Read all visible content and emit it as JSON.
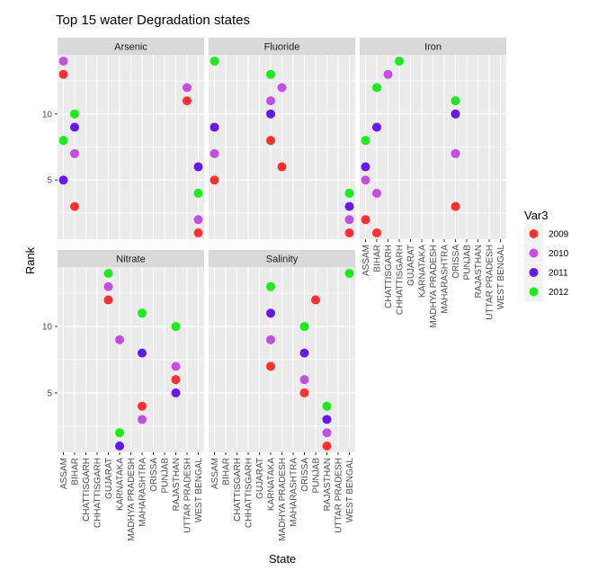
{
  "chart_data": {
    "type": "scatter",
    "title": "Top 15 water Degradation states",
    "xlabel": "State",
    "ylabel": "Rank",
    "ylim": [
      0,
      15
    ],
    "yticks": [
      5,
      10
    ],
    "grid": true,
    "legend": {
      "title": "Var3",
      "placement": "right"
    },
    "states": [
      "ASSAM",
      "BIHAR",
      "CHATTISGARH",
      "CHHATTISGARH",
      "GUJARAT",
      "KARNATAKA",
      "MADHYA PRADESH",
      "MAHARASHTRA",
      "ORISSA",
      "PUNJAB",
      "RAJASTHAN",
      "UTTAR PRADESH",
      "WEST BENGAL"
    ],
    "series": [
      {
        "name": "2009",
        "color": "#ff1a1a"
      },
      {
        "name": "2010",
        "color": "#c03ce6"
      },
      {
        "name": "2011",
        "color": "#5500ee"
      },
      {
        "name": "2012",
        "color": "#00ee00"
      }
    ],
    "panels": [
      {
        "name": "Arsenic",
        "points": [
          {
            "state": "ASSAM",
            "series": "2009",
            "rank": 13
          },
          {
            "state": "ASSAM",
            "series": "2010",
            "rank": 14
          },
          {
            "state": "ASSAM",
            "series": "2011",
            "rank": 5
          },
          {
            "state": "ASSAM",
            "series": "2012",
            "rank": 8
          },
          {
            "state": "BIHAR",
            "series": "2009",
            "rank": 3
          },
          {
            "state": "BIHAR",
            "series": "2010",
            "rank": 7
          },
          {
            "state": "BIHAR",
            "series": "2011",
            "rank": 9
          },
          {
            "state": "BIHAR",
            "series": "2012",
            "rank": 10
          },
          {
            "state": "UTTAR PRADESH",
            "series": "2009",
            "rank": 11
          },
          {
            "state": "UTTAR PRADESH",
            "series": "2010",
            "rank": 12
          },
          {
            "state": "WEST BENGAL",
            "series": "2009",
            "rank": 1
          },
          {
            "state": "WEST BENGAL",
            "series": "2010",
            "rank": 2
          },
          {
            "state": "WEST BENGAL",
            "series": "2011",
            "rank": 6
          },
          {
            "state": "WEST BENGAL",
            "series": "2012",
            "rank": 4
          }
        ]
      },
      {
        "name": "Fluoride",
        "points": [
          {
            "state": "ASSAM",
            "series": "2009",
            "rank": 5
          },
          {
            "state": "ASSAM",
            "series": "2010",
            "rank": 7
          },
          {
            "state": "ASSAM",
            "series": "2011",
            "rank": 9
          },
          {
            "state": "ASSAM",
            "series": "2012",
            "rank": 14
          },
          {
            "state": "KARNATAKA",
            "series": "2009",
            "rank": 8
          },
          {
            "state": "KARNATAKA",
            "series": "2010",
            "rank": 11
          },
          {
            "state": "KARNATAKA",
            "series": "2011",
            "rank": 10
          },
          {
            "state": "KARNATAKA",
            "series": "2012",
            "rank": 13
          },
          {
            "state": "MADHYA PRADESH",
            "series": "2009",
            "rank": 6
          },
          {
            "state": "MADHYA PRADESH",
            "series": "2010",
            "rank": 12
          },
          {
            "state": "WEST BENGAL",
            "series": "2009",
            "rank": 1
          },
          {
            "state": "WEST BENGAL",
            "series": "2010",
            "rank": 2
          },
          {
            "state": "WEST BENGAL",
            "series": "2011",
            "rank": 3
          },
          {
            "state": "WEST BENGAL",
            "series": "2012",
            "rank": 4
          }
        ]
      },
      {
        "name": "Iron",
        "points": [
          {
            "state": "ASSAM",
            "series": "2009",
            "rank": 2
          },
          {
            "state": "ASSAM",
            "series": "2010",
            "rank": 5
          },
          {
            "state": "ASSAM",
            "series": "2011",
            "rank": 6
          },
          {
            "state": "ASSAM",
            "series": "2012",
            "rank": 8
          },
          {
            "state": "BIHAR",
            "series": "2009",
            "rank": 1
          },
          {
            "state": "BIHAR",
            "series": "2010",
            "rank": 4
          },
          {
            "state": "BIHAR",
            "series": "2011",
            "rank": 9
          },
          {
            "state": "BIHAR",
            "series": "2012",
            "rank": 12
          },
          {
            "state": "CHATTISGARH",
            "series": "2010",
            "rank": 13
          },
          {
            "state": "CHHATTISGARH",
            "series": "2012",
            "rank": 14
          },
          {
            "state": "ORISSA",
            "series": "2009",
            "rank": 3
          },
          {
            "state": "ORISSA",
            "series": "2010",
            "rank": 7
          },
          {
            "state": "ORISSA",
            "series": "2011",
            "rank": 10
          },
          {
            "state": "ORISSA",
            "series": "2012",
            "rank": 11
          }
        ]
      },
      {
        "name": "Nitrate",
        "points": [
          {
            "state": "GUJARAT",
            "series": "2009",
            "rank": 12
          },
          {
            "state": "GUJARAT",
            "series": "2010",
            "rank": 13
          },
          {
            "state": "GUJARAT",
            "series": "2012",
            "rank": 14
          },
          {
            "state": "KARNATAKA",
            "series": "2010",
            "rank": 9
          },
          {
            "state": "KARNATAKA",
            "series": "2011",
            "rank": 1
          },
          {
            "state": "KARNATAKA",
            "series": "2012",
            "rank": 2
          },
          {
            "state": "MAHARASHTRA",
            "series": "2009",
            "rank": 4
          },
          {
            "state": "MAHARASHTRA",
            "series": "2010",
            "rank": 3
          },
          {
            "state": "MAHARASHTRA",
            "series": "2011",
            "rank": 8
          },
          {
            "state": "MAHARASHTRA",
            "series": "2012",
            "rank": 11
          },
          {
            "state": "RAJASTHAN",
            "series": "2009",
            "rank": 6
          },
          {
            "state": "RAJASTHAN",
            "series": "2010",
            "rank": 7
          },
          {
            "state": "RAJASTHAN",
            "series": "2011",
            "rank": 5
          },
          {
            "state": "RAJASTHAN",
            "series": "2012",
            "rank": 10
          }
        ]
      },
      {
        "name": "Salinity",
        "points": [
          {
            "state": "KARNATAKA",
            "series": "2009",
            "rank": 7
          },
          {
            "state": "KARNATAKA",
            "series": "2010",
            "rank": 9
          },
          {
            "state": "KARNATAKA",
            "series": "2011",
            "rank": 11
          },
          {
            "state": "KARNATAKA",
            "series": "2012",
            "rank": 13
          },
          {
            "state": "ORISSA",
            "series": "2009",
            "rank": 5
          },
          {
            "state": "ORISSA",
            "series": "2010",
            "rank": 6
          },
          {
            "state": "ORISSA",
            "series": "2011",
            "rank": 8
          },
          {
            "state": "ORISSA",
            "series": "2012",
            "rank": 10
          },
          {
            "state": "PUNJAB",
            "series": "2009",
            "rank": 12
          },
          {
            "state": "RAJASTHAN",
            "series": "2009",
            "rank": 1
          },
          {
            "state": "RAJASTHAN",
            "series": "2010",
            "rank": 2
          },
          {
            "state": "RAJASTHAN",
            "series": "2011",
            "rank": 3
          },
          {
            "state": "RAJASTHAN",
            "series": "2012",
            "rank": 4
          },
          {
            "state": "WEST BENGAL",
            "series": "2012",
            "rank": 14
          }
        ]
      }
    ]
  }
}
